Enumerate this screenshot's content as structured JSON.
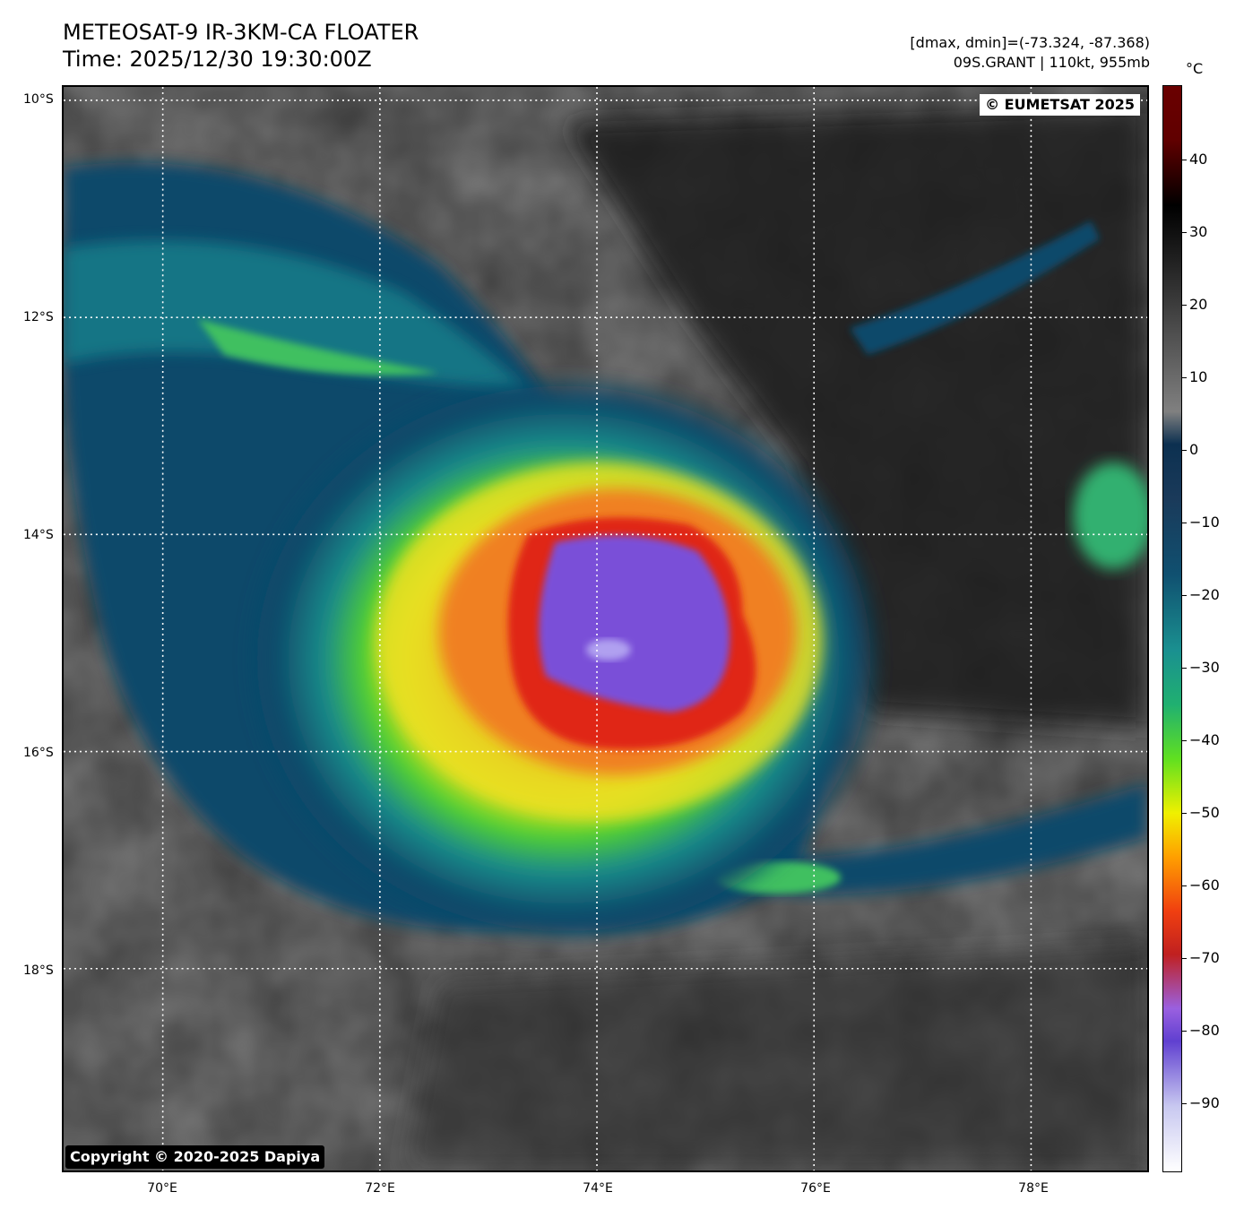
{
  "header": {
    "title_line1": "METEOSAT-9 IR-3KM-CA FLOATER",
    "title_line2": "Time: 2025/12/30 19:30:00Z",
    "info_line1": "[dmax, dmin]=(-73.324, -87.368)",
    "info_line2": "09S.GRANT | 110kt, 955mb"
  },
  "map": {
    "latitude_labels": [
      "10°S",
      "12°S",
      "14°S",
      "16°S",
      "18°S"
    ],
    "longitude_labels": [
      "70°E",
      "72°E",
      "74°E",
      "76°E",
      "78°E"
    ],
    "eumetsat_badge": "© EUMETSAT 2025",
    "copyright_badge": "Copyright © 2020-2025 Dapiya"
  },
  "colorbar": {
    "unit": "°C",
    "tick_labels": [
      "40",
      "30",
      "20",
      "10",
      "0",
      "−10",
      "−20",
      "−30",
      "−40",
      "−50",
      "−60",
      "−70",
      "−80",
      "−90"
    ]
  },
  "colors": {
    "eye_purple": "#7a4fd8",
    "eyewall_red": "#e02818",
    "cloud_orange": "#f08020",
    "cloud_yellow": "#e8e020",
    "cloud_green": "#50d030",
    "cloud_teal": "#1a8a8a",
    "cloud_blue": "#0e4a6a",
    "background_gray": "#3a3a3a"
  }
}
